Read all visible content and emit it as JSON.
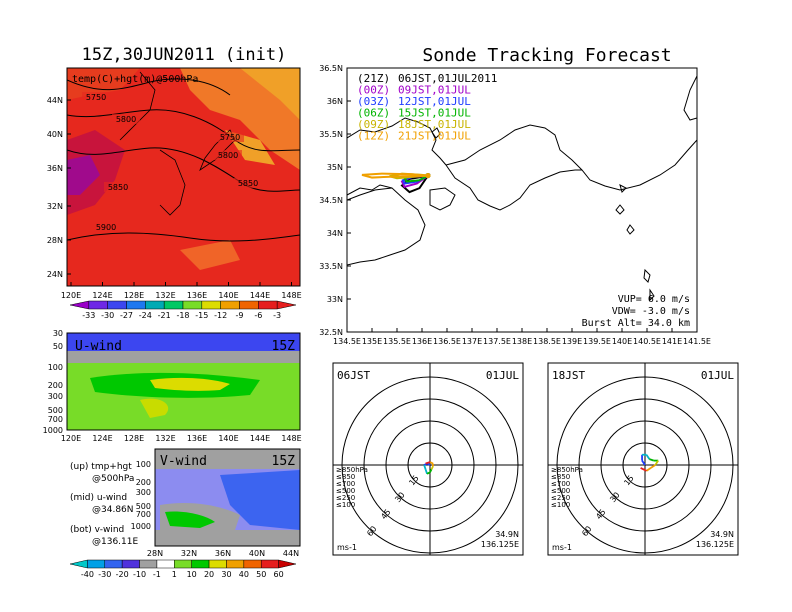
{
  "left": {
    "title": "15Z,30JUN2011 (init)",
    "map_label": "temp(C)+hgt(m)@500hPa",
    "lat_ticks": [
      "44N",
      "40N",
      "36N",
      "32N",
      "28N",
      "24N"
    ],
    "lon_ticks": [
      "120E",
      "124E",
      "128E",
      "132E",
      "136E",
      "140E",
      "144E",
      "148E"
    ],
    "contours": [
      "5750",
      "5800",
      "5750",
      "5800",
      "5850",
      "5850",
      "5900"
    ],
    "temp_bar": {
      "labels": [
        "-33",
        "-30",
        "-27",
        "-24",
        "-21",
        "-18",
        "-15",
        "-12",
        "-9",
        "-6",
        "-3"
      ],
      "colors": [
        "#9a00c8",
        "#6e28e6",
        "#3c46f0",
        "#1e78f0",
        "#00aab4",
        "#00c864",
        "#78dc28",
        "#dcdc00",
        "#f0a000",
        "#f06400",
        "#e61e1e",
        "#e61e1e"
      ]
    },
    "u_panel": {
      "label": "U-wind",
      "time": "15Z",
      "p_ticks": [
        "30",
        "50",
        "100",
        "200",
        "300",
        "500",
        "700",
        "1000"
      ],
      "lon_ticks": [
        "120E",
        "124E",
        "128E",
        "132E",
        "136E",
        "140E",
        "144E",
        "148E"
      ]
    },
    "v_panel": {
      "label": "V-wind",
      "time": "15Z",
      "p_ticks": [
        "100",
        "200",
        "300",
        "500",
        "700",
        "1000"
      ],
      "lat_ticks": [
        "28N",
        "32N",
        "36N",
        "40N",
        "44N"
      ]
    },
    "legend": {
      "up": [
        "(up) tmp+hgt",
        "@500hPa"
      ],
      "mid": [
        "(mid) u-wind",
        "@34.86N"
      ],
      "bot": [
        "(bot) v-wind",
        "@136.11E"
      ]
    },
    "wind_bar": {
      "labels": [
        "-40",
        "-30",
        "-20",
        "-10",
        "-1",
        "1",
        "10",
        "20",
        "30",
        "40",
        "50",
        "60"
      ],
      "colors": [
        "#00c8c8",
        "#00a0e6",
        "#3264f0",
        "#5032dc",
        "#a0a0a0",
        "#ffffff",
        "#78dc28",
        "#00c800",
        "#dcdc00",
        "#f0a000",
        "#f06400",
        "#e61e1e",
        "#c80000"
      ]
    }
  },
  "right": {
    "title": "Sonde Tracking Forecast",
    "launches": [
      {
        "tag": "(21Z)",
        "label": "06JST,01JUL2011",
        "color": "#000000"
      },
      {
        "tag": "(00Z)",
        "label": "09JST,01JUL",
        "color": "#a000c8"
      },
      {
        "tag": "(03Z)",
        "label": "12JST,01JUL",
        "color": "#1e3cff"
      },
      {
        "tag": "(06Z)",
        "label": "15JST,01JUL",
        "color": "#00b400"
      },
      {
        "tag": "(09Z)",
        "label": "18JST,01JUL",
        "color": "#c8b400"
      },
      {
        "tag": "(12Z)",
        "label": "21JST,01JUL",
        "color": "#f0a000"
      }
    ],
    "lat_ticks": [
      "36.5N",
      "36N",
      "35.5N",
      "35N",
      "34.5N",
      "34N",
      "33.5N",
      "33N",
      "32.5N"
    ],
    "lon_ticks": [
      "134.5E",
      "135E",
      "135.5E",
      "136E",
      "136.5E",
      "137E",
      "137.5E",
      "138E",
      "138.5E",
      "139E",
      "139.5E",
      "140E",
      "140.5E",
      "141E",
      "141.5E"
    ],
    "params": [
      "VUP= 6.0 m/s",
      "VDW= -3.0 m/s",
      "Burst Alt= 34.0 km"
    ]
  },
  "hodographs": [
    {
      "time": "06JST",
      "date": "01JUL",
      "lat": "34.9N",
      "lon": "136.125E",
      "unit": "ms-1",
      "rings": [
        "15",
        "30",
        "45",
        "60"
      ],
      "levels": [
        {
          "t": "≥850hPa",
          "c": "#e61e1e"
        },
        {
          "t": "≤850",
          "c": "#f0a000"
        },
        {
          "t": "≤700",
          "c": "#c8c800"
        },
        {
          "t": "≤500",
          "c": "#00b400"
        },
        {
          "t": "≤250",
          "c": "#00b4c8"
        },
        {
          "t": "≤100",
          "c": "#1e3cff"
        }
      ]
    },
    {
      "time": "18JST",
      "date": "01JUL",
      "lat": "34.9N",
      "lon": "136.125E",
      "unit": "ms-1",
      "rings": [
        "15",
        "30",
        "45",
        "60"
      ],
      "levels": [
        {
          "t": "≥850hPa",
          "c": "#e61e1e"
        },
        {
          "t": "≤850",
          "c": "#f0a000"
        },
        {
          "t": "≤700",
          "c": "#c8c800"
        },
        {
          "t": "≤500",
          "c": "#00b400"
        },
        {
          "t": "≤250",
          "c": "#00b4c8"
        },
        {
          "t": "≤100",
          "c": "#1e3cff"
        }
      ]
    }
  ],
  "chart_data": [
    {
      "type": "heatmap",
      "title": "15Z,30JUN2011 (init)",
      "annotation": "temp(C)+hgt(m)@500hPa",
      "x_ticks": [
        "120E",
        "124E",
        "128E",
        "132E",
        "136E",
        "140E",
        "144E",
        "148E"
      ],
      "y_ticks": [
        "24N",
        "28N",
        "32N",
        "36N",
        "40N",
        "44N"
      ],
      "contour_labels": [
        5750,
        5800,
        5850,
        5900
      ],
      "colorbar": [
        -33,
        -30,
        -27,
        -24,
        -21,
        -18,
        -15,
        -12,
        -9,
        -6,
        -3
      ]
    },
    {
      "type": "heatmap",
      "title": "U-wind",
      "annotation": "15Z",
      "y_ticks": [
        30,
        50,
        100,
        200,
        300,
        500,
        700,
        1000
      ]
    },
    {
      "type": "heatmap",
      "title": "V-wind",
      "annotation": "15Z",
      "y_ticks": [
        100,
        200,
        300,
        500,
        700,
        1000
      ],
      "colorbar": [
        -40,
        -30,
        -20,
        -10,
        -1,
        1,
        10,
        20,
        30,
        40,
        50,
        60
      ]
    },
    {
      "type": "line",
      "title": "Sonde Tracking Forecast",
      "xlim": [
        134.5,
        141.5
      ],
      "ylim": [
        32.5,
        36.5
      ],
      "series": [
        {
          "name": "(21Z) 06JST,01JUL2011",
          "x": [
            136.12,
            135.95,
            135.75,
            135.6,
            135.75,
            136.0,
            136.12
          ],
          "y": [
            34.87,
            34.68,
            34.62,
            34.72,
            34.82,
            34.85,
            34.87
          ]
        },
        {
          "name": "(00Z) 09JST,01JUL",
          "x": [
            136.12,
            135.9,
            135.65,
            135.6,
            135.8,
            136.05,
            136.12
          ],
          "y": [
            34.87,
            34.75,
            34.7,
            34.78,
            34.85,
            34.86,
            34.87
          ]
        },
        {
          "name": "(03Z) 12JST,01JUL",
          "x": [
            136.12,
            135.9,
            135.65,
            135.62,
            135.85,
            136.1,
            136.12
          ],
          "y": [
            34.87,
            34.78,
            34.75,
            34.8,
            34.86,
            34.87,
            34.87
          ]
        },
        {
          "name": "(06Z) 15JST,01JUL",
          "x": [
            136.12,
            135.95,
            135.7,
            135.65,
            135.9,
            136.12
          ],
          "y": [
            34.87,
            34.8,
            34.78,
            34.83,
            34.88,
            34.87
          ]
        },
        {
          "name": "(09Z) 18JST,01JUL",
          "x": [
            136.12,
            135.8,
            135.5,
            135.35,
            135.6,
            136.0,
            136.12
          ],
          "y": [
            34.87,
            34.85,
            34.83,
            34.86,
            34.9,
            34.88,
            34.87
          ]
        },
        {
          "name": "(12Z) 21JST,01JUL",
          "x": [
            136.12,
            135.6,
            135.0,
            134.8,
            135.2,
            135.8,
            136.12
          ],
          "y": [
            34.87,
            34.86,
            34.84,
            34.88,
            34.9,
            34.89,
            34.87
          ]
        }
      ],
      "params": [
        "VUP= 6.0 m/s",
        "VDW= -3.0 m/s",
        "Burst Alt= 34.0 km"
      ]
    },
    {
      "type": "line",
      "title": "06JST 01JUL hodograph",
      "ring_labels": [
        15,
        30,
        45,
        60
      ],
      "series": [
        {
          "name": "hodograph",
          "u": [
            0,
            -2,
            -4,
            -3,
            -2,
            0,
            1,
            2,
            2,
            0,
            -3
          ],
          "v": [
            0,
            1,
            0,
            -3,
            -6,
            -5,
            -3,
            -1,
            1,
            2,
            1
          ]
        }
      ]
    },
    {
      "type": "line",
      "title": "18JST 01JUL hodograph",
      "ring_labels": [
        15,
        30,
        45,
        60
      ],
      "series": [
        {
          "name": "hodograph",
          "u": [
            0,
            -2,
            -2,
            1,
            3,
            6,
            9,
            7,
            4,
            1,
            -3
          ],
          "v": [
            0,
            3,
            7,
            7,
            4,
            3,
            3,
            0,
            -2,
            -4,
            -2
          ]
        }
      ]
    }
  ]
}
